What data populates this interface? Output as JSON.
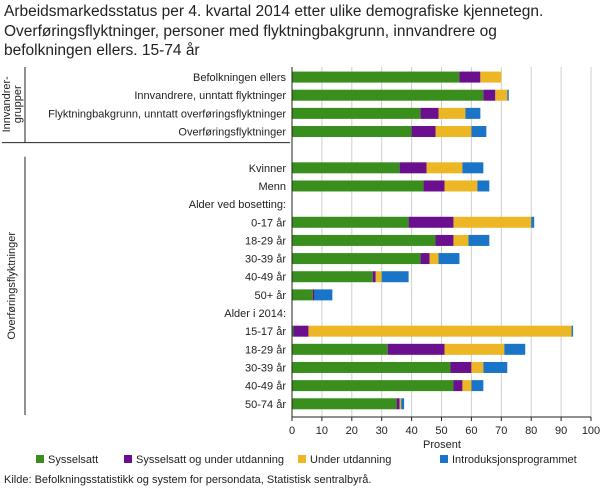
{
  "title_lines": [
    "Arbeidsmarkedsstatus per 4. kvartal 2014 etter ulike demografiske kjennetegn.",
    "Overføringsflyktninger, personer med flyktningbakgrunn, innvandrere  og",
    "befolkningen ellers. 15-74 år"
  ],
  "source": "Kilde: Befolkningsstatistikk og system for persondata, Statistisk sentralbyrå.",
  "colors": {
    "Sysselsatt": "#3a8e1e",
    "Sysselsatt og under utdanning": "#6a0f8e",
    "Under utdanning": "#ecb625",
    "Introduksjonsprogrammet": "#1a75c8",
    "grid": "#cfcfcf",
    "axis": "#222222"
  },
  "chart_data": {
    "type": "bar",
    "orientation": "horizontal",
    "stacked": true,
    "xlabel": "Prosent",
    "xlim": [
      0,
      100
    ],
    "xticks": [
      0,
      10,
      20,
      30,
      40,
      50,
      60,
      70,
      80,
      90,
      100
    ],
    "legend_position": "bottom",
    "group_labels": [
      {
        "label": "Innvandrer-\ngrupper",
        "rows": [
          0,
          3
        ]
      },
      {
        "label": "Overføringsflyktninger",
        "rows": [
          5,
          18
        ]
      }
    ],
    "categories": [
      "Befolkningen ellers",
      "Innvandrere, unntatt flyktninger",
      "Flyktningbakgrunn, unntatt overføringsflyktninger",
      "Overføringsflyktninger",
      "",
      "Kvinner",
      "Menn",
      "Alder ved bosetting:",
      "0-17 år",
      "18-29 år",
      "30-39 år",
      "40-49 år",
      "50+ år",
      "Alder i 2014:",
      "15-17 år",
      "18-29 år",
      "30-39 år",
      "40-49 år",
      "50-74 år"
    ],
    "series": [
      {
        "name": "Sysselsatt",
        "values": [
          56,
          64,
          43,
          40,
          null,
          36,
          44,
          null,
          39,
          48,
          43,
          27,
          7,
          null,
          0.5,
          32,
          53,
          54,
          35
        ]
      },
      {
        "name": "Sysselsatt og under utdanning",
        "values": [
          7,
          4,
          6,
          8,
          null,
          9,
          7,
          null,
          15,
          6,
          3,
          1,
          0.5,
          null,
          5,
          19,
          7,
          3,
          1
        ]
      },
      {
        "name": "Under utdanning",
        "values": [
          7,
          4,
          9,
          12,
          null,
          12,
          11,
          null,
          26,
          5,
          3,
          2,
          0,
          null,
          88,
          20,
          4,
          3,
          0.5
        ]
      },
      {
        "name": "Introduksjonsprogrammet",
        "values": [
          0,
          0.5,
          5,
          5,
          null,
          7,
          4,
          null,
          1,
          7,
          7,
          9,
          6,
          null,
          0.5,
          7,
          8,
          4,
          1
        ]
      }
    ]
  }
}
